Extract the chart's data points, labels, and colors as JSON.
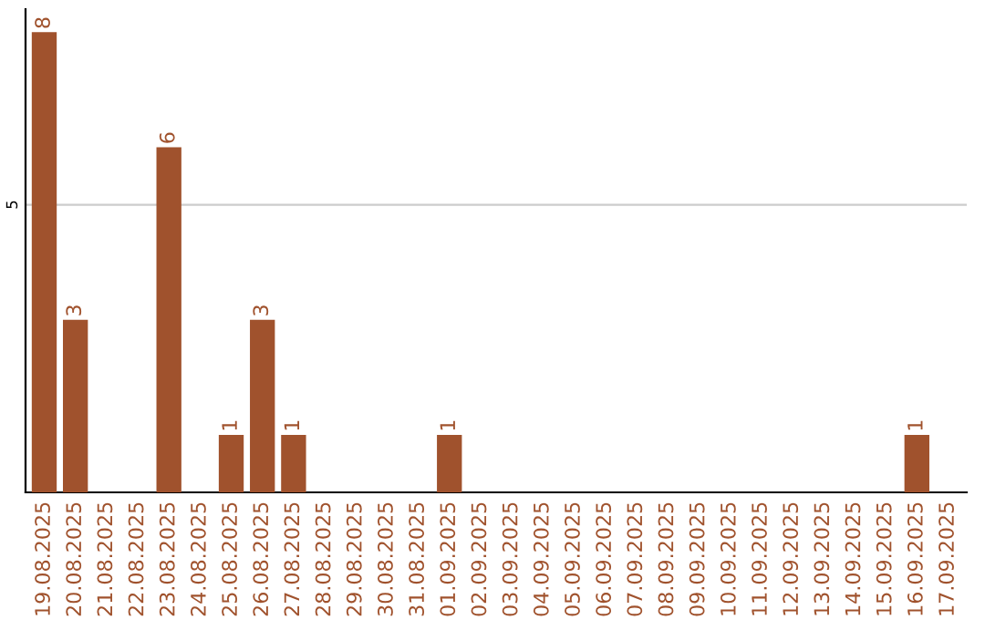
{
  "chart_data": {
    "type": "bar",
    "categories": [
      "19.08.2025",
      "20.08.2025",
      "21.08.2025",
      "22.08.2025",
      "23.08.2025",
      "24.08.2025",
      "25.08.2025",
      "26.08.2025",
      "27.08.2025",
      "28.08.2025",
      "29.08.2025",
      "30.08.2025",
      "31.08.2025",
      "01.09.2025",
      "02.09.2025",
      "03.09.2025",
      "04.09.2025",
      "05.09.2025",
      "06.09.2025",
      "07.09.2025",
      "08.09.2025",
      "09.09.2025",
      "10.09.2025",
      "11.09.2025",
      "12.09.2025",
      "13.09.2025",
      "14.09.2025",
      "15.09.2025",
      "16.09.2025",
      "17.09.2025"
    ],
    "values": [
      8,
      3,
      0,
      0,
      6,
      0,
      1,
      3,
      1,
      0,
      0,
      0,
      0,
      1,
      0,
      0,
      0,
      0,
      0,
      0,
      0,
      0,
      0,
      0,
      0,
      0,
      0,
      0,
      1,
      0
    ],
    "value_labels": [
      "8",
      "3",
      null,
      null,
      "6",
      null,
      "1",
      "3",
      "1",
      null,
      null,
      null,
      null,
      "1",
      null,
      null,
      null,
      null,
      null,
      null,
      null,
      null,
      null,
      null,
      null,
      null,
      null,
      null,
      "1",
      null
    ],
    "color": "#a0522d",
    "ylim": [
      0,
      8.4
    ],
    "yticks": [
      5
    ],
    "grid": "y",
    "legend": false
  }
}
